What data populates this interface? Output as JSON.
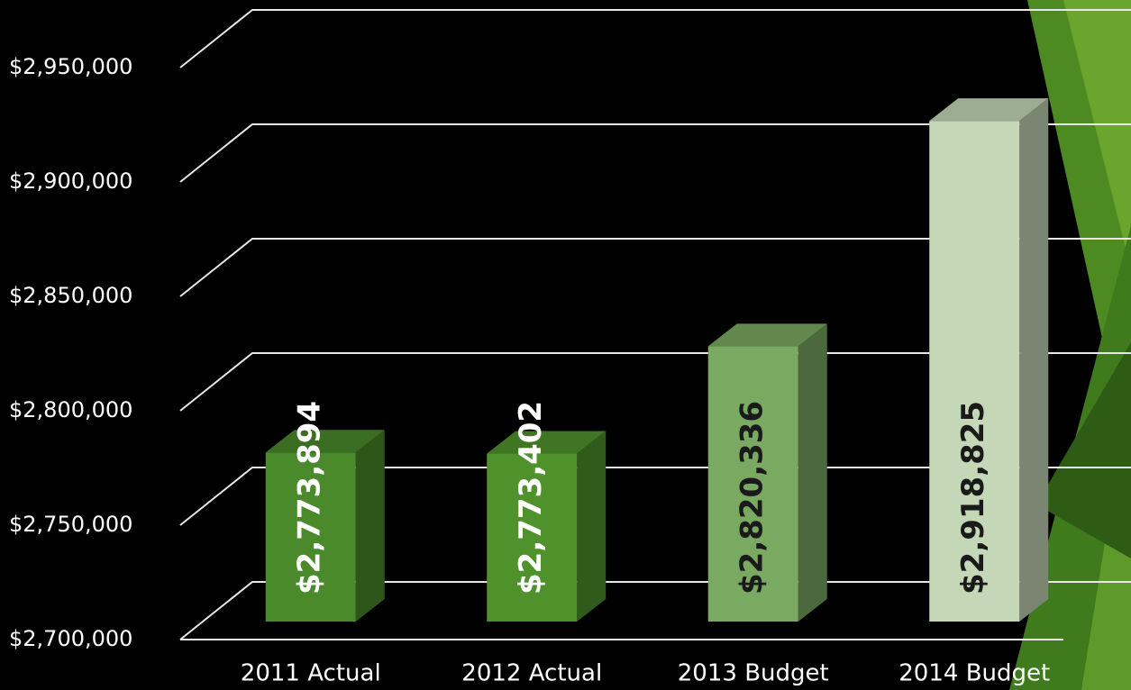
{
  "chart_data": {
    "type": "bar3d",
    "categories": [
      "2011 Actual",
      "2012 Actual",
      "2013 Budget",
      "2014 Budget"
    ],
    "values": [
      2773894,
      2773402,
      2820336,
      2918825
    ],
    "value_labels": [
      "$2,773,894",
      "$2,773,402",
      "$2,820,336",
      "$2,918,825"
    ],
    "colors": [
      "#4a8a2a",
      "#4f922c",
      "#7aaa62",
      "#c4d8b8"
    ],
    "value_label_colors": [
      "#ffffff",
      "#ffffff",
      "#1a1a1a",
      "#1a1a1a"
    ],
    "ylim": [
      2700000,
      2950000
    ],
    "yticks": [
      {
        "value": 2700000,
        "label": "$2,700,000"
      },
      {
        "value": 2750000,
        "label": "$2,750,000"
      },
      {
        "value": 2800000,
        "label": "$2,800,000"
      },
      {
        "value": 2850000,
        "label": "$2,850,000"
      },
      {
        "value": 2900000,
        "label": "$2,900,000"
      },
      {
        "value": 2950000,
        "label": "$2,950,000"
      }
    ],
    "grid": true
  }
}
